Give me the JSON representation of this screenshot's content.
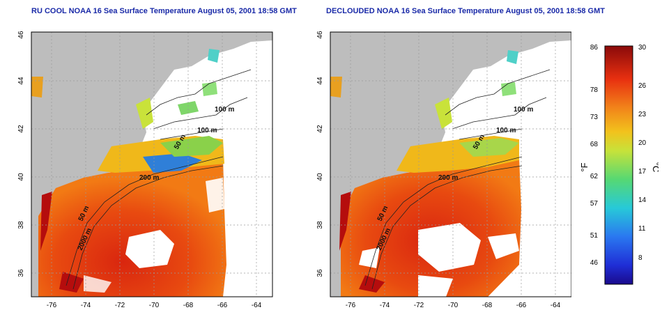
{
  "titles": {
    "left": "RU COOL NOAA 16 Sea Surface Temperature August 05, 2001 18:58 GMT",
    "right": "DECLOUDED NOAA 16 Sea Surface Temperature August 05, 2001 18:58 GMT"
  },
  "map": {
    "lon_ticks": [
      "-76",
      "-74",
      "-72",
      "-70",
      "-68",
      "-66",
      "-64"
    ],
    "lat_ticks": [
      "36",
      "38",
      "40",
      "42",
      "44",
      "46"
    ],
    "contour_labels": [
      "100 m",
      "100 m",
      "50 m",
      "200 m",
      "50 m",
      "2000 m"
    ],
    "colors": {
      "land": "#bdbdbd",
      "grid": "#9a9a9a",
      "contour": "#222222"
    }
  },
  "colorbar": {
    "fahrenheit_ticks": [
      "86",
      "78",
      "73",
      "68",
      "62",
      "57",
      "51",
      "46"
    ],
    "celsius_ticks": [
      "30",
      "26",
      "23",
      "20",
      "17",
      "14",
      "11",
      "8"
    ],
    "fahrenheit_unit": "°F",
    "celsius_unit": "°C",
    "range_c": [
      5,
      30
    ]
  }
}
